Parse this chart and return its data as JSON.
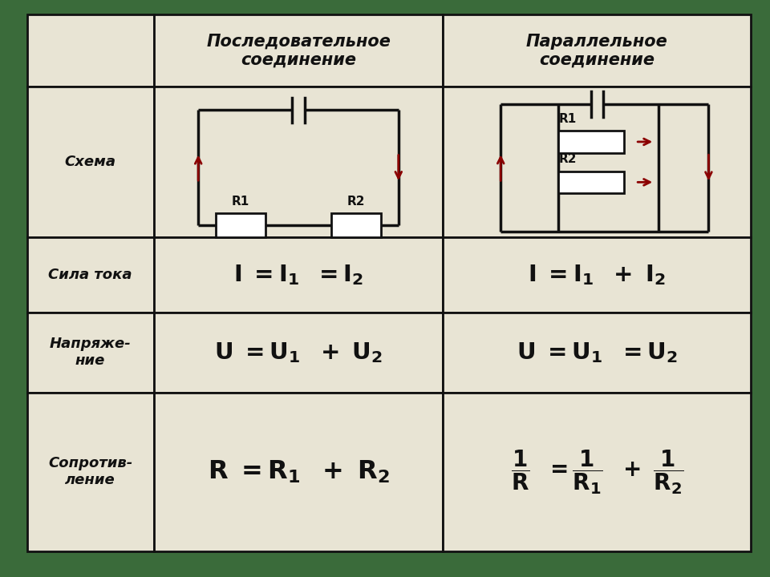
{
  "background_color": "#3a6b3a",
  "table_bg": "#e8e4d4",
  "border_color": "#111111",
  "text_color": "#111111",
  "wire_color": "#111111",
  "arrow_color": "#8b0000",
  "resistor_color": "#ffffff",
  "col_splits": [
    0.0,
    0.175,
    0.575,
    1.0
  ],
  "row_splits": [
    0.0,
    0.135,
    0.415,
    0.555,
    0.705,
    1.0
  ],
  "header_labels": [
    "",
    "Последовательное\nсоединение",
    "Параллельное\nсоединение"
  ],
  "row_labels": [
    "Схема",
    "Сила тока",
    "Напряже-\nние",
    "Сопротив-\nление"
  ]
}
